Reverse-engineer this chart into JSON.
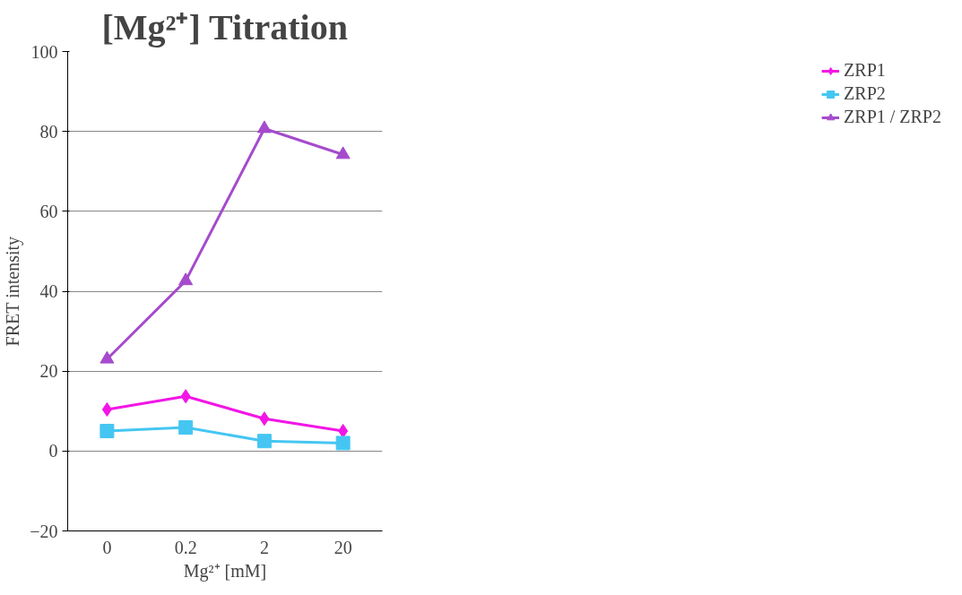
{
  "chart_data": {
    "type": "line",
    "title": "[Mg²⁺] Titration",
    "xlabel": "Mg²⁺ [mM]",
    "ylabel": "FRET intensity",
    "categories": [
      "0",
      "0.2",
      "2",
      "20"
    ],
    "ylim": [
      -20,
      100
    ],
    "yticks": [
      -20,
      0,
      20,
      40,
      60,
      80,
      100
    ],
    "grid": "y",
    "legend": "right",
    "series": [
      {
        "name": "ZRP1",
        "color": "#f216e6",
        "marker": "diamond",
        "values": [
          10.4,
          13.7,
          8.1,
          5.0
        ]
      },
      {
        "name": "ZRP2",
        "color": "#45c6f2",
        "marker": "square",
        "values": [
          5.0,
          5.9,
          2.5,
          2.0
        ]
      },
      {
        "name": "ZRP1 / ZRP2",
        "color": "#a54bcc",
        "marker": "triangle",
        "values": [
          23,
          42.6,
          80.7,
          74.2
        ]
      }
    ]
  }
}
